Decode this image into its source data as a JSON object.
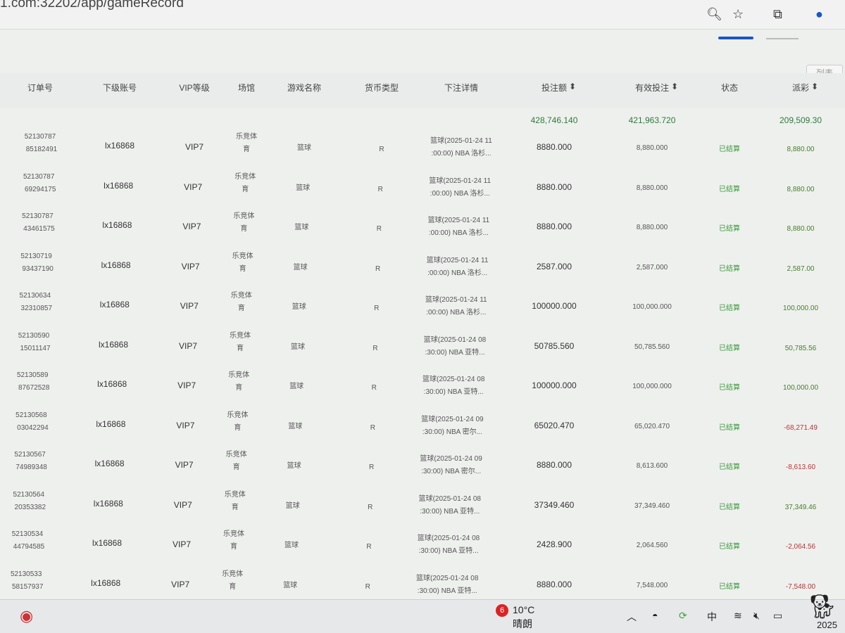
{
  "browser": {
    "url": "1.com:32202/app/gameRecord",
    "icons": [
      "zoom-icon",
      "star-icon",
      "extensions-icon",
      "profile-icon"
    ]
  },
  "toolbar": {
    "list_label": "列表"
  },
  "table": {
    "columns": [
      "订单号",
      "下级账号",
      "VIP等级",
      "场馆",
      "游戏名称",
      "货币类型",
      "下注详情",
      "投注额",
      "有效投注",
      "状态",
      "派彩"
    ],
    "sortable": [
      "投注额",
      "有效投注",
      "派彩"
    ],
    "totals": {
      "bet": "428,746.140",
      "valid": "421,963.720",
      "payout": "209,509.30"
    },
    "rows": [
      {
        "order_a": "52130787",
        "order_b": "85182491",
        "account": "lx16868",
        "vip": "VIP7",
        "venue_a": "乐竞体",
        "venue_b": "育",
        "game": "篮球",
        "currency": "R",
        "detail_a": "篮球(2025-01-24 11",
        "detail_b": ":00:00) NBA 洛杉...",
        "bet": "8880.000",
        "valid": "8,880.000",
        "status": "已结算",
        "payout": "8,880.00",
        "neg": false
      },
      {
        "order_a": "52130787",
        "order_b": "69294175",
        "account": "lx16868",
        "vip": "VIP7",
        "venue_a": "乐竞体",
        "venue_b": "育",
        "game": "篮球",
        "currency": "R",
        "detail_a": "篮球(2025-01-24 11",
        "detail_b": ":00:00) NBA 洛杉...",
        "bet": "8880.000",
        "valid": "8,880.000",
        "status": "已结算",
        "payout": "8,880.00",
        "neg": false
      },
      {
        "order_a": "52130787",
        "order_b": "43461575",
        "account": "lx16868",
        "vip": "VIP7",
        "venue_a": "乐竞体",
        "venue_b": "育",
        "game": "篮球",
        "currency": "R",
        "detail_a": "篮球(2025-01-24 11",
        "detail_b": ":00:00) NBA 洛杉...",
        "bet": "8880.000",
        "valid": "8,880.000",
        "status": "已结算",
        "payout": "8,880.00",
        "neg": false
      },
      {
        "order_a": "52130719",
        "order_b": "93437190",
        "account": "lx16868",
        "vip": "VIP7",
        "venue_a": "乐竞体",
        "venue_b": "育",
        "game": "篮球",
        "currency": "R",
        "detail_a": "篮球(2025-01-24 11",
        "detail_b": ":00:00) NBA 洛杉...",
        "bet": "2587.000",
        "valid": "2,587.000",
        "status": "已结算",
        "payout": "2,587.00",
        "neg": false
      },
      {
        "order_a": "52130634",
        "order_b": "32310857",
        "account": "lx16868",
        "vip": "VIP7",
        "venue_a": "乐竞体",
        "venue_b": "育",
        "game": "篮球",
        "currency": "R",
        "detail_a": "篮球(2025-01-24 11",
        "detail_b": ":00:00) NBA 洛杉...",
        "bet": "100000.000",
        "valid": "100,000.000",
        "status": "已结算",
        "payout": "100,000.00",
        "neg": false
      },
      {
        "order_a": "52130590",
        "order_b": "15011147",
        "account": "lx16868",
        "vip": "VIP7",
        "venue_a": "乐竞体",
        "venue_b": "育",
        "game": "篮球",
        "currency": "R",
        "detail_a": "篮球(2025-01-24 08",
        "detail_b": ":30:00) NBA 亚特...",
        "bet": "50785.560",
        "valid": "50,785.560",
        "status": "已结算",
        "payout": "50,785.56",
        "neg": false
      },
      {
        "order_a": "52130589",
        "order_b": "87672528",
        "account": "lx16868",
        "vip": "VIP7",
        "venue_a": "乐竞体",
        "venue_b": "育",
        "game": "篮球",
        "currency": "R",
        "detail_a": "篮球(2025-01-24 08",
        "detail_b": ":30:00) NBA 亚特...",
        "bet": "100000.000",
        "valid": "100,000.000",
        "status": "已结算",
        "payout": "100,000.00",
        "neg": false
      },
      {
        "order_a": "52130568",
        "order_b": "03042294",
        "account": "lx16868",
        "vip": "VIP7",
        "venue_a": "乐竞体",
        "venue_b": "育",
        "game": "篮球",
        "currency": "R",
        "detail_a": "篮球(2025-01-24 09",
        "detail_b": ":30:00) NBA 密尔...",
        "bet": "65020.470",
        "valid": "65,020.470",
        "status": "已结算",
        "payout": "-68,271.49",
        "neg": true
      },
      {
        "order_a": "52130567",
        "order_b": "74989348",
        "account": "lx16868",
        "vip": "VIP7",
        "venue_a": "乐竞体",
        "venue_b": "育",
        "game": "篮球",
        "currency": "R",
        "detail_a": "篮球(2025-01-24 09",
        "detail_b": ":30:00) NBA 密尔...",
        "bet": "8880.000",
        "valid": "8,613.600",
        "status": "已结算",
        "payout": "-8,613.60",
        "neg": true
      },
      {
        "order_a": "52130564",
        "order_b": "20353382",
        "account": "lx16868",
        "vip": "VIP7",
        "venue_a": "乐竞体",
        "venue_b": "育",
        "game": "篮球",
        "currency": "R",
        "detail_a": "篮球(2025-01-24 08",
        "detail_b": ":30:00) NBA 亚特...",
        "bet": "37349.460",
        "valid": "37,349.460",
        "status": "已结算",
        "payout": "37,349.46",
        "neg": false
      },
      {
        "order_a": "52130534",
        "order_b": "44794585",
        "account": "lx16868",
        "vip": "VIP7",
        "venue_a": "乐竞体",
        "venue_b": "育",
        "game": "篮球",
        "currency": "R",
        "detail_a": "篮球(2025-01-24 08",
        "detail_b": ":30:00) NBA 亚特...",
        "bet": "2428.900",
        "valid": "2,064.560",
        "status": "已结算",
        "payout": "-2,064.56",
        "neg": true
      },
      {
        "order_a": "52130533",
        "order_b": "58157937",
        "account": "lx16868",
        "vip": "VIP7",
        "venue_a": "乐竞体",
        "venue_b": "育",
        "game": "篮球",
        "currency": "R",
        "detail_a": "篮球(2025-01-24 08",
        "detail_b": ":30:00) NBA 亚特...",
        "bet": "8880.000",
        "valid": "7,548.000",
        "status": "已结算",
        "payout": "-7,548.00",
        "neg": true
      }
    ]
  },
  "taskbar": {
    "weather_badge": "6",
    "temperature": "10°C",
    "weather": "晴朗",
    "ime": "中",
    "clock": "2025"
  }
}
